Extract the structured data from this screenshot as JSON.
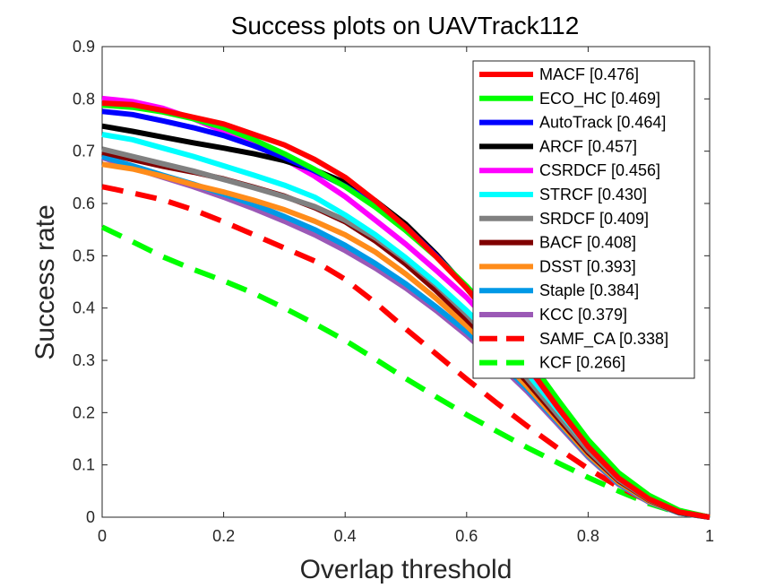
{
  "chart_data": {
    "type": "line",
    "title": "Success plots on UAVTrack112",
    "xlabel": "Overlap threshold",
    "ylabel": "Success rate",
    "xlim": [
      0,
      1
    ],
    "ylim": [
      0,
      0.9
    ],
    "xticks": [
      0,
      0.2,
      0.4,
      0.6,
      0.8,
      1
    ],
    "xtick_labels": [
      "0",
      "0.2",
      "0.4",
      "0.6",
      "0.8",
      "1"
    ],
    "yticks": [
      0,
      0.1,
      0.2,
      0.3,
      0.4,
      0.5,
      0.6,
      0.7,
      0.8,
      0.9
    ],
    "ytick_labels": [
      "0",
      "0.1",
      "0.2",
      "0.3",
      "0.4",
      "0.5",
      "0.6",
      "0.7",
      "0.8",
      "0.9"
    ],
    "grid": false,
    "legend_position": "top-right",
    "x": [
      0,
      0.05,
      0.1,
      0.15,
      0.2,
      0.25,
      0.3,
      0.35,
      0.4,
      0.45,
      0.5,
      0.55,
      0.6,
      0.65,
      0.7,
      0.75,
      0.8,
      0.85,
      0.9,
      0.95,
      1
    ],
    "series": [
      {
        "name": "MACF [0.476]",
        "color": "#ff0000",
        "dash": "solid",
        "values": [
          0.792,
          0.789,
          0.778,
          0.765,
          0.752,
          0.732,
          0.712,
          0.684,
          0.65,
          0.605,
          0.555,
          0.498,
          0.438,
          0.368,
          0.29,
          0.21,
          0.135,
          0.075,
          0.035,
          0.01,
          0.0
        ]
      },
      {
        "name": "ECO_HC [0.469]",
        "color": "#00ff00",
        "dash": "solid",
        "values": [
          0.788,
          0.784,
          0.775,
          0.762,
          0.745,
          0.722,
          0.695,
          0.665,
          0.632,
          0.593,
          0.548,
          0.498,
          0.442,
          0.378,
          0.305,
          0.225,
          0.148,
          0.085,
          0.042,
          0.013,
          0.0
        ]
      },
      {
        "name": "AutoTrack [0.464]",
        "color": "#0000ff",
        "dash": "solid",
        "values": [
          0.776,
          0.77,
          0.758,
          0.745,
          0.73,
          0.71,
          0.688,
          0.662,
          0.633,
          0.598,
          0.555,
          0.5,
          0.44,
          0.372,
          0.298,
          0.218,
          0.142,
          0.08,
          0.038,
          0.011,
          0.0
        ]
      },
      {
        "name": "ARCF [0.457]",
        "color": "#000000",
        "dash": "solid",
        "values": [
          0.748,
          0.738,
          0.727,
          0.716,
          0.706,
          0.695,
          0.682,
          0.664,
          0.64,
          0.605,
          0.56,
          0.503,
          0.438,
          0.368,
          0.293,
          0.213,
          0.138,
          0.077,
          0.036,
          0.01,
          0.0
        ]
      },
      {
        "name": "CSRDCF [0.456]",
        "color": "#ff00ff",
        "dash": "solid",
        "values": [
          0.801,
          0.795,
          0.782,
          0.762,
          0.738,
          0.712,
          0.685,
          0.652,
          0.613,
          0.568,
          0.522,
          0.472,
          0.42,
          0.358,
          0.288,
          0.21,
          0.137,
          0.078,
          0.037,
          0.011,
          0.0
        ]
      },
      {
        "name": "STRCF [0.430]",
        "color": "#00ffff",
        "dash": "solid",
        "values": [
          0.732,
          0.722,
          0.706,
          0.69,
          0.672,
          0.654,
          0.635,
          0.612,
          0.578,
          0.54,
          0.496,
          0.448,
          0.395,
          0.338,
          0.275,
          0.205,
          0.135,
          0.077,
          0.036,
          0.01,
          0.0
        ]
      },
      {
        "name": "SRDCF [0.409]",
        "color": "#808080",
        "dash": "solid",
        "values": [
          0.704,
          0.69,
          0.676,
          0.662,
          0.646,
          0.63,
          0.613,
          0.594,
          0.568,
          0.534,
          0.492,
          0.444,
          0.388,
          0.328,
          0.265,
          0.196,
          0.128,
          0.072,
          0.034,
          0.01,
          0.0
        ]
      },
      {
        "name": "BACF [0.408]",
        "color": "#800000",
        "dash": "solid",
        "values": [
          0.698,
          0.684,
          0.671,
          0.66,
          0.647,
          0.631,
          0.614,
          0.592,
          0.565,
          0.528,
          0.484,
          0.433,
          0.378,
          0.32,
          0.258,
          0.19,
          0.124,
          0.07,
          0.033,
          0.009,
          0.0
        ]
      },
      {
        "name": "DSST [0.393]",
        "color": "#ff8c1a",
        "dash": "solid",
        "values": [
          0.675,
          0.666,
          0.652,
          0.636,
          0.622,
          0.606,
          0.588,
          0.566,
          0.54,
          0.507,
          0.465,
          0.418,
          0.366,
          0.31,
          0.25,
          0.185,
          0.12,
          0.067,
          0.031,
          0.009,
          0.0
        ]
      },
      {
        "name": "Staple [0.384]",
        "color": "#0099e6",
        "dash": "solid",
        "values": [
          0.69,
          0.672,
          0.654,
          0.637,
          0.618,
          0.598,
          0.575,
          0.55,
          0.52,
          0.485,
          0.446,
          0.402,
          0.355,
          0.303,
          0.245,
          0.182,
          0.118,
          0.065,
          0.03,
          0.008,
          0.0
        ]
      },
      {
        "name": "KCC [0.379]",
        "color": "#9b59b6",
        "dash": "solid",
        "values": [
          0.688,
          0.668,
          0.65,
          0.632,
          0.612,
          0.59,
          0.566,
          0.54,
          0.51,
          0.476,
          0.438,
          0.395,
          0.348,
          0.296,
          0.24,
          0.178,
          0.115,
          0.063,
          0.029,
          0.008,
          0.0
        ]
      },
      {
        "name": "SAMF_CA [0.338]",
        "color": "#ff0000",
        "dash": "dashed",
        "values": [
          0.632,
          0.62,
          0.607,
          0.588,
          0.565,
          0.54,
          0.515,
          0.49,
          0.455,
          0.41,
          0.36,
          0.312,
          0.264,
          0.218,
          0.174,
          0.132,
          0.093,
          0.058,
          0.03,
          0.009,
          0.0
        ]
      },
      {
        "name": "KCF [0.266]",
        "color": "#00ff00",
        "dash": "dashed",
        "values": [
          0.555,
          0.527,
          0.498,
          0.474,
          0.452,
          0.428,
          0.4,
          0.37,
          0.338,
          0.302,
          0.265,
          0.23,
          0.196,
          0.164,
          0.133,
          0.104,
          0.076,
          0.05,
          0.026,
          0.008,
          0.0
        ]
      }
    ]
  }
}
